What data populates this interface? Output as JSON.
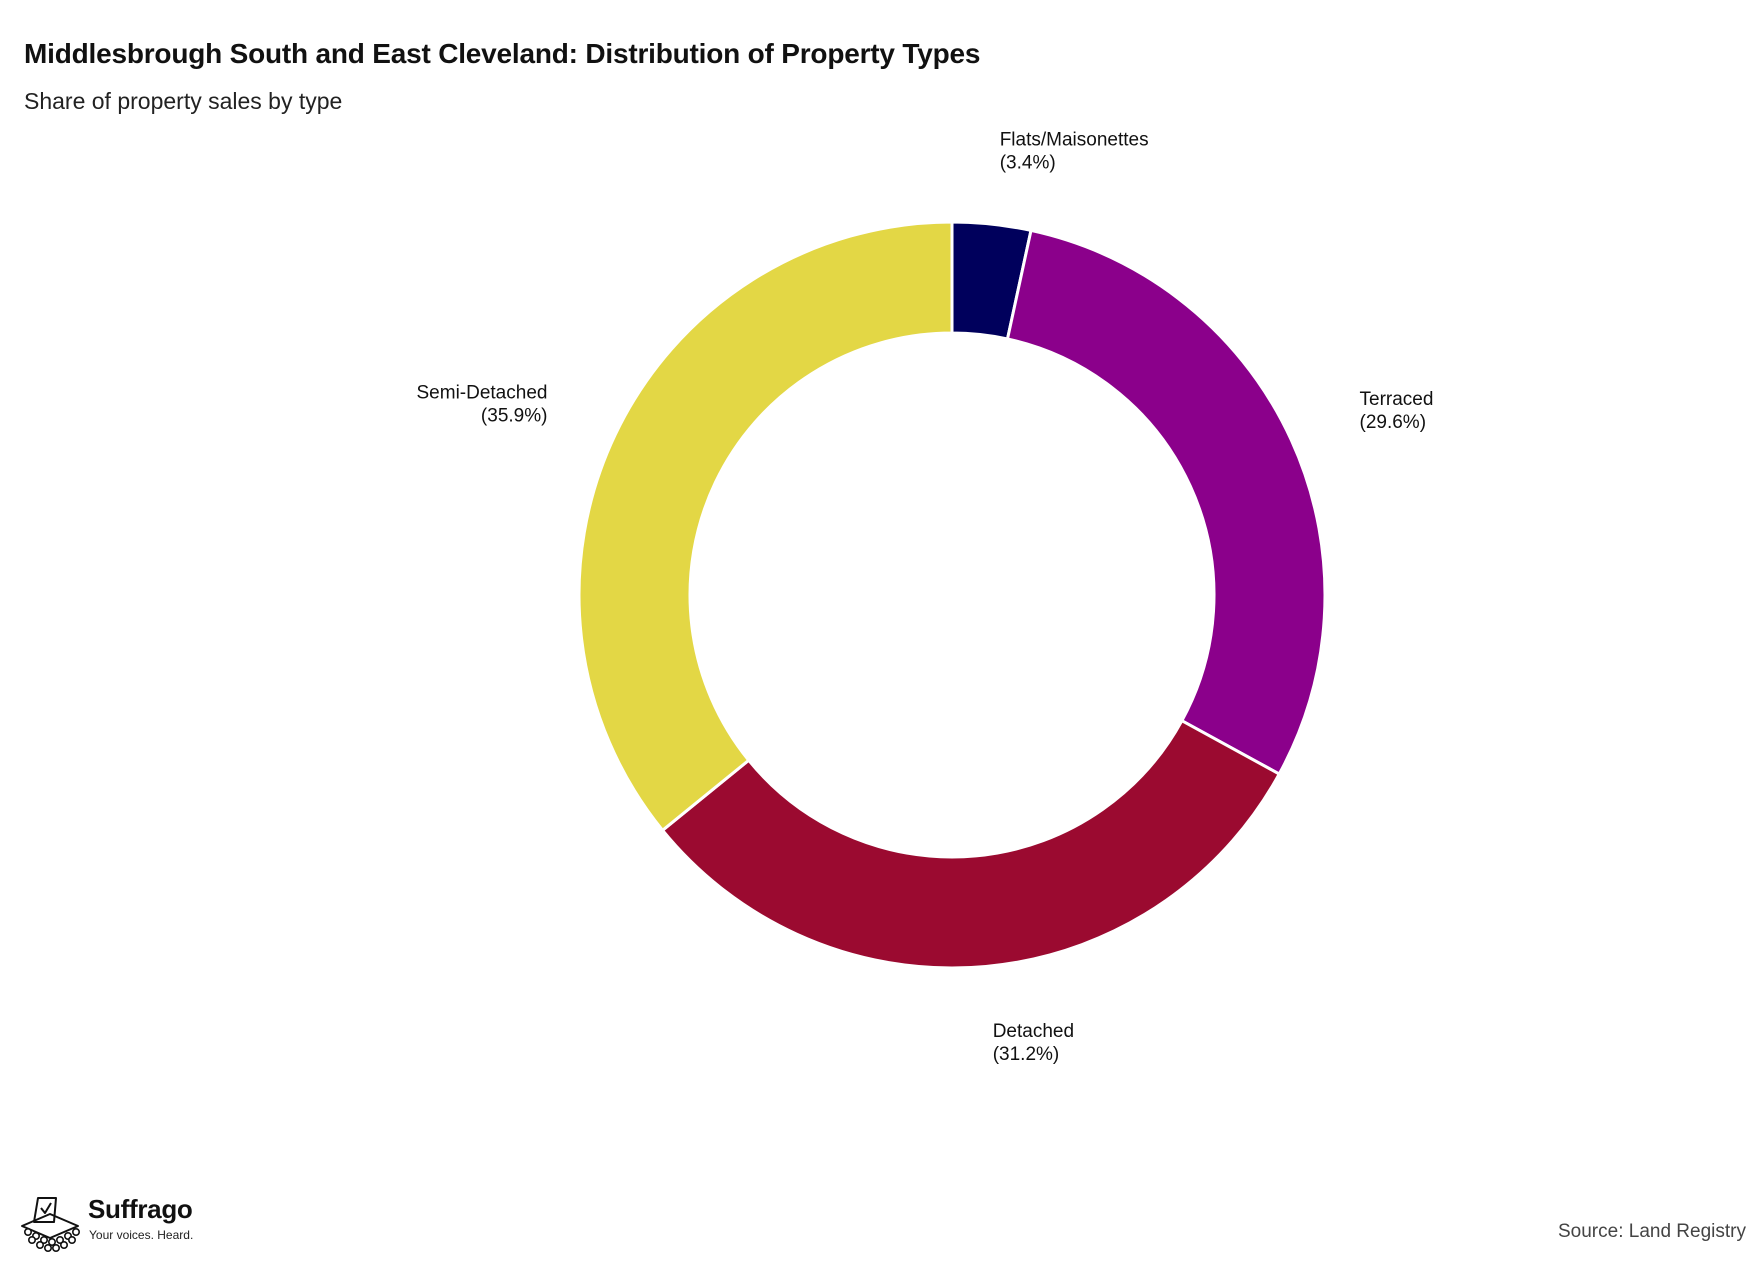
{
  "header": {
    "title": "Middlesbrough South and East Cleveland: Distribution of Property Types",
    "subtitle": "Share of property sales by type"
  },
  "chart_data": {
    "type": "pie",
    "variant": "donut",
    "start": "top",
    "direction": "clockwise",
    "categories": [
      "Flats/Maisonettes",
      "Terraced",
      "Detached",
      "Semi-Detached"
    ],
    "values": [
      3.4,
      29.6,
      31.2,
      35.9
    ],
    "value_labels": [
      "(3.4%)",
      "(29.6%)",
      "(31.2%)",
      "(35.9%)"
    ],
    "unit": "%",
    "colors": [
      "#00005c",
      "#8b008b",
      "#9b0a30",
      "#e3d745"
    ],
    "slice_separator_color": "#ffffff",
    "legend": "none"
  },
  "branding": {
    "name": "Suffrago",
    "tagline": "Your voices. Heard.",
    "icon": "ballot-box-icon"
  },
  "footer": {
    "source": "Source: Land Registry"
  }
}
